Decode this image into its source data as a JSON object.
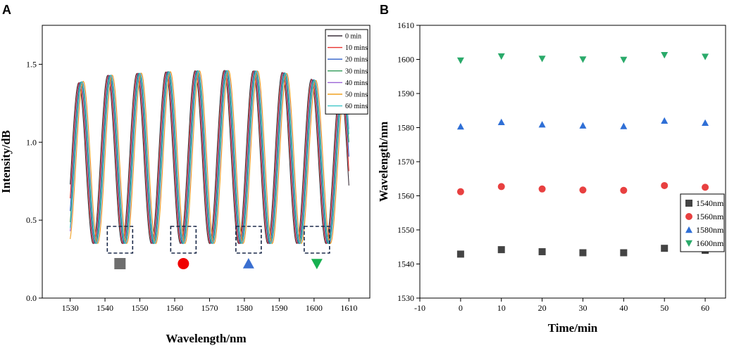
{
  "panel_a": {
    "letter": "A",
    "chart_data": {
      "type": "line",
      "title": "",
      "xlabel": "Wavelength/nm",
      "ylabel": "Intensity/dB",
      "xlim": [
        1522,
        1616
      ],
      "ylim": [
        0.0,
        1.75
      ],
      "x_ticks": [
        1530,
        1540,
        1550,
        1560,
        1570,
        1580,
        1590,
        1600,
        1610
      ],
      "y_ticks": [
        0.0,
        0.5,
        1.0,
        1.5
      ],
      "y_tick_labels": [
        "0.0",
        "0.5",
        "1.0",
        "1.5"
      ],
      "x_range": [
        1530,
        1610
      ],
      "period_nm": 8.35,
      "dip_nm": 1536.6,
      "min_value": 0.35,
      "series": [
        {
          "name": "0 min",
          "color": "#3a2f3a",
          "shift_nm": 0.0
        },
        {
          "name": "10 mins",
          "color": "#e8322f",
          "shift_nm": 0.25
        },
        {
          "name": "20 mins",
          "color": "#2f5fc8",
          "shift_nm": 0.5
        },
        {
          "name": "30 mins",
          "color": "#2e9a57",
          "shift_nm": 0.75
        },
        {
          "name": "40 mins",
          "color": "#9a63d6",
          "shift_nm": 1.0
        },
        {
          "name": "50 mins",
          "color": "#f0a020",
          "shift_nm": 1.3
        },
        {
          "name": "60 mins",
          "color": "#3fc6c8",
          "shift_nm": 0.9
        }
      ],
      "annotations": [
        {
          "center_nm": 1544.3,
          "marker": "square",
          "color": "#6e6e6e"
        },
        {
          "center_nm": 1562.5,
          "marker": "circle",
          "color": "#f00000"
        },
        {
          "center_nm": 1581.2,
          "marker": "triangle-up",
          "color": "#3a6fd0"
        },
        {
          "center_nm": 1600.8,
          "marker": "triangle-down",
          "color": "#17b050"
        }
      ]
    }
  },
  "panel_b": {
    "letter": "B",
    "chart_data": {
      "type": "scatter",
      "title": "",
      "xlabel": "Time/min",
      "ylabel": "Wavelength/nm",
      "xlim": [
        -10,
        65
      ],
      "ylim": [
        1530,
        1610
      ],
      "x_ticks": [
        -10,
        0,
        10,
        20,
        30,
        40,
        50,
        60
      ],
      "y_ticks": [
        1530,
        1540,
        1550,
        1560,
        1570,
        1580,
        1590,
        1600,
        1610
      ],
      "x": [
        0,
        10,
        20,
        30,
        40,
        50,
        60
      ],
      "series": [
        {
          "name": "1540nm",
          "marker": "square",
          "color": "#444444",
          "values": [
            1542.9,
            1544.2,
            1543.6,
            1543.3,
            1543.3,
            1544.6,
            1544.0
          ]
        },
        {
          "name": "1560nm",
          "marker": "circle",
          "color": "#e84040",
          "values": [
            1561.2,
            1562.7,
            1562.0,
            1561.7,
            1561.6,
            1563.0,
            1562.5
          ]
        },
        {
          "name": "1580nm",
          "marker": "triangle-up",
          "color": "#2f6fd6",
          "values": [
            1580.3,
            1581.6,
            1580.9,
            1580.6,
            1580.4,
            1582.0,
            1581.4
          ]
        },
        {
          "name": "1600nm",
          "marker": "triangle-down",
          "color": "#2aaa6a",
          "values": [
            1599.7,
            1600.9,
            1600.2,
            1600.0,
            1599.9,
            1601.3,
            1600.8
          ]
        }
      ],
      "legend_position": "lower-right"
    }
  }
}
